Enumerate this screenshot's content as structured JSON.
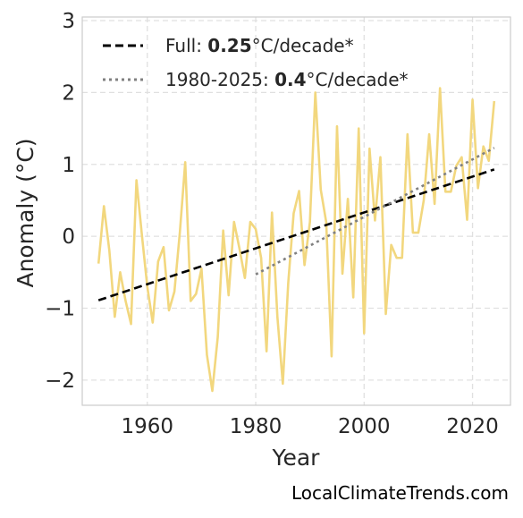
{
  "chart_data": {
    "type": "line",
    "xlabel": "Year",
    "ylabel": "Anomaly (°C)",
    "xlim": [
      1948,
      2027
    ],
    "ylim": [
      -2.35,
      3.05
    ],
    "xticks": [
      1960,
      1980,
      2000,
      2020
    ],
    "yticks": [
      3,
      2,
      1,
      0,
      -1,
      -2
    ],
    "ytick_labels": [
      "3",
      "2",
      "1",
      "0",
      "−1",
      "−2"
    ],
    "grid": true,
    "legend_position": "top-left",
    "series": [
      {
        "kind": "anomaly",
        "color": "#f2d77e",
        "x": [
          1951,
          1952,
          1953,
          1954,
          1955,
          1956,
          1957,
          1958,
          1959,
          1960,
          1961,
          1962,
          1963,
          1964,
          1965,
          1966,
          1967,
          1968,
          1969,
          1970,
          1971,
          1972,
          1973,
          1974,
          1975,
          1976,
          1977,
          1978,
          1979,
          1980,
          1981,
          1982,
          1983,
          1984,
          1985,
          1986,
          1987,
          1988,
          1989,
          1990,
          1991,
          1992,
          1993,
          1994,
          1995,
          1996,
          1997,
          1998,
          1999,
          2000,
          2001,
          2002,
          2003,
          2004,
          2005,
          2006,
          2007,
          2008,
          2009,
          2010,
          2011,
          2012,
          2013,
          2014,
          2015,
          2016,
          2017,
          2018,
          2019,
          2020,
          2021,
          2022,
          2023,
          2024
        ],
        "y": [
          -0.38,
          0.42,
          -0.2,
          -1.12,
          -0.5,
          -0.9,
          -1.22,
          0.78,
          0.02,
          -0.7,
          -1.2,
          -0.35,
          -0.15,
          -1.03,
          -0.77,
          0.05,
          1.03,
          -0.9,
          -0.8,
          -0.45,
          -1.65,
          -2.15,
          -1.4,
          0.08,
          -0.82,
          0.2,
          -0.17,
          -0.58,
          0.2,
          0.1,
          -0.3,
          -1.6,
          0.33,
          -1.12,
          -2.05,
          -0.65,
          0.32,
          0.63,
          -0.4,
          0.2,
          2.0,
          0.65,
          0.2,
          -1.67,
          1.53,
          -0.52,
          0.52,
          -0.85,
          1.5,
          -1.35,
          1.22,
          0.22,
          1.1,
          -1.08,
          -0.12,
          -0.3,
          -0.3,
          1.42,
          0.05,
          0.05,
          0.5,
          1.42,
          0.45,
          2.06,
          0.62,
          0.62,
          0.98,
          1.1,
          0.23,
          1.9,
          0.67,
          1.25,
          1.05,
          1.88
        ]
      },
      {
        "kind": "trend",
        "color": "#000000",
        "style": "dashed",
        "x": [
          1951,
          2024
        ],
        "y": [
          -0.89,
          0.93
        ]
      },
      {
        "kind": "trend",
        "color": "#808080",
        "style": "dotted",
        "x": [
          1980,
          2024
        ],
        "y": [
          -0.53,
          1.23
        ]
      }
    ],
    "legend": [
      {
        "prefix": "Full: ",
        "value": "0.25",
        "suffix": "°C/decade*"
      },
      {
        "prefix": "1980-2025: ",
        "value": "0.4",
        "suffix": "°C/decade*"
      }
    ]
  },
  "watermark": "LocalClimateTrends.com"
}
